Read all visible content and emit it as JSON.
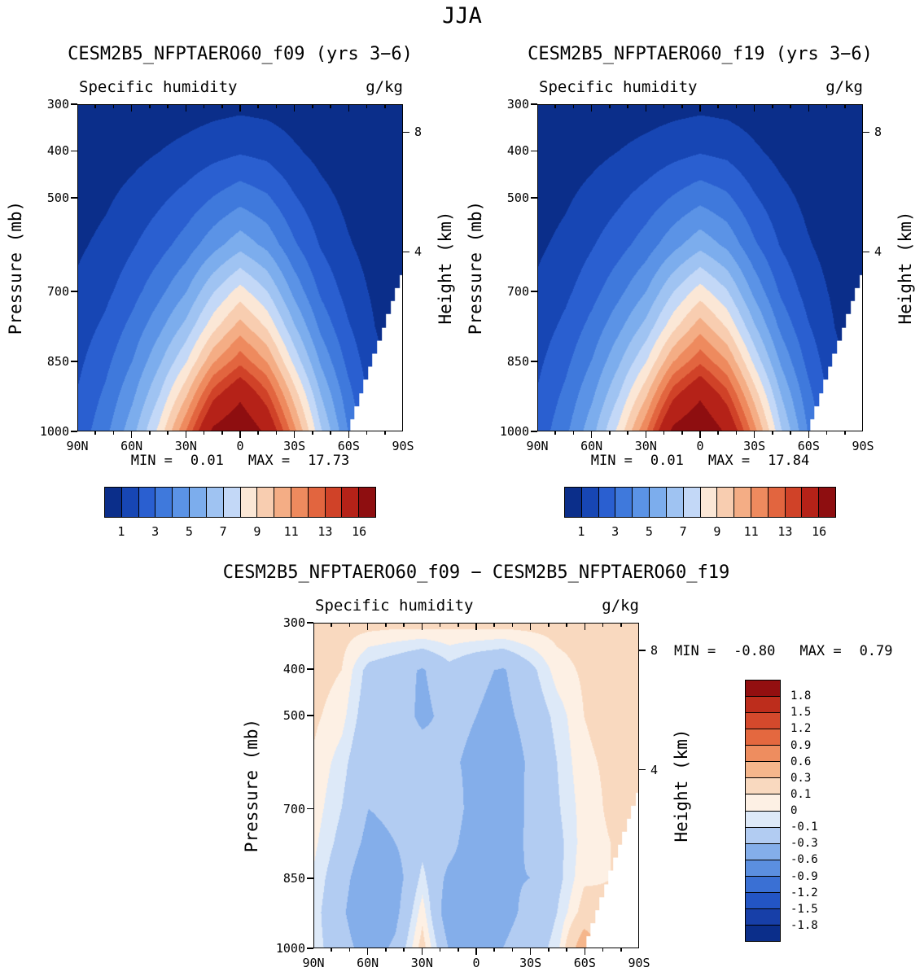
{
  "figure_title": "JJA",
  "axes": {
    "pressure_tick_values": [
      300,
      400,
      500,
      700,
      850,
      1000
    ],
    "pressure_tick_labels": [
      "300",
      "400",
      "500",
      "700",
      "850",
      "1000"
    ],
    "pressure_range": [
      300,
      1000
    ],
    "lat_tick_values": [
      90,
      60,
      30,
      0,
      -30,
      -60,
      -90
    ],
    "lat_tick_labels": [
      "90N",
      "60N",
      "30N",
      "0",
      "30S",
      "60S",
      "90S"
    ],
    "height_tick_pressures": [
      360,
      616
    ],
    "height_tick_labels": [
      "8",
      "4"
    ]
  },
  "terrain": {
    "lats": [
      90,
      75,
      60,
      45,
      30,
      15,
      0,
      -15,
      -30,
      -45,
      -60,
      -75,
      -90
    ],
    "surface_pressure_mb": [
      1013,
      1013,
      1013,
      1013,
      1013,
      1013,
      1013,
      1013,
      1013,
      1013,
      1005,
      835,
      665
    ]
  },
  "colorscale_q": {
    "levels": [
      1,
      2,
      3,
      4,
      5,
      6,
      7,
      8,
      9,
      10,
      11,
      12,
      13,
      14,
      16
    ],
    "colors": [
      "#0b2e8a",
      "#1746b4",
      "#2a5fd0",
      "#3f79dc",
      "#5b93e6",
      "#7caded",
      "#9fc3f2",
      "#c3d8f7",
      "#fbe7d6",
      "#f8cdb0",
      "#f4ad85",
      "#ee8a5e",
      "#e2653f",
      "#d04228",
      "#b52218",
      "#8e0e10"
    ],
    "tick_labels": [
      "1",
      "3",
      "5",
      "7",
      "9",
      "11",
      "13",
      "16"
    ],
    "tick_boundary_indices": [
      0,
      2,
      4,
      6,
      8,
      10,
      12,
      14
    ]
  },
  "colorscale_diff": {
    "levels": [
      -1.8,
      -1.5,
      -1.2,
      -0.9,
      -0.6,
      -0.3,
      -0.1,
      0,
      0.1,
      0.3,
      0.6,
      0.9,
      1.2,
      1.5,
      1.8
    ],
    "colors": [
      "#0b2e8a",
      "#173fa8",
      "#2355c4",
      "#3a70d4",
      "#5b8fe0",
      "#84aeea",
      "#b2ccf2",
      "#dde9f8",
      "#fdf0e4",
      "#f9d9bf",
      "#f5b68c",
      "#ee8d5f",
      "#e4683f",
      "#d4492c",
      "#bd2d1c",
      "#930f10"
    ],
    "tick_labels": [
      "1.8",
      "1.5",
      "1.2",
      "0.9",
      "0.6",
      "0.3",
      "0.1",
      "0",
      "-0.1",
      "-0.3",
      "-0.6",
      "-0.9",
      "-1.2",
      "-1.5",
      "-1.8"
    ]
  },
  "chart_data": [
    {
      "type": "heatmap",
      "title": "CESM2B5_NFPTAERO60_f09 (yrs 3−6)",
      "field_label": "Specific humidity",
      "units": "g/kg",
      "ylabel": "Pressure (mb)",
      "ylabel_right": "Height (km)",
      "x": "latitude",
      "y": "pressure_mb",
      "stats": {
        "min_label": "MIN =",
        "min": "0.01",
        "max_label": "MAX =",
        "max": "17.73"
      },
      "lats": [
        90,
        75,
        60,
        45,
        30,
        15,
        0,
        -15,
        -30,
        -45,
        -60,
        -75,
        -90
      ],
      "pressure_levels": [
        300,
        400,
        500,
        600,
        700,
        775,
        850,
        925,
        1000
      ],
      "values": [
        [
          0.12,
          0.18,
          0.28,
          0.4,
          0.52,
          0.66,
          0.76,
          0.68,
          0.5,
          0.32,
          0.2,
          0.12,
          0.08
        ],
        [
          0.3,
          0.45,
          0.7,
          1.0,
          1.3,
          1.65,
          1.9,
          1.7,
          1.15,
          0.7,
          0.4,
          0.22,
          0.12
        ],
        [
          0.55,
          0.85,
          1.3,
          1.8,
          2.35,
          3.05,
          3.65,
          3.15,
          2.1,
          1.3,
          0.75,
          0.4,
          0.2
        ],
        [
          0.85,
          1.25,
          1.9,
          2.6,
          3.45,
          4.6,
          5.6,
          4.7,
          3.15,
          1.9,
          1.1,
          0.55,
          0.28
        ],
        [
          1.2,
          1.75,
          2.6,
          3.7,
          4.95,
          6.9,
          8.4,
          7.0,
          4.7,
          2.8,
          1.6,
          0.8,
          0.38
        ],
        [
          1.5,
          2.2,
          3.3,
          4.7,
          6.3,
          8.6,
          10.4,
          8.8,
          6.1,
          3.7,
          2.1,
          1.0,
          0.45
        ],
        [
          1.8,
          2.7,
          4.0,
          5.8,
          7.9,
          10.8,
          12.6,
          10.9,
          7.7,
          4.8,
          2.7,
          1.2,
          0.5
        ],
        [
          2.1,
          3.2,
          4.8,
          7.0,
          9.9,
          13.6,
          15.6,
          13.3,
          9.6,
          6.0,
          3.4,
          1.4,
          0.55
        ],
        [
          2.4,
          3.7,
          5.6,
          8.3,
          12.0,
          16.3,
          17.7,
          15.5,
          11.3,
          7.1,
          4.0,
          1.6,
          0.6
        ]
      ]
    },
    {
      "type": "heatmap",
      "title": "CESM2B5_NFPTAERO60_f19 (yrs 3−6)",
      "field_label": "Specific humidity",
      "units": "g/kg",
      "ylabel": "Pressure (mb)",
      "ylabel_right": "Height (km)",
      "x": "latitude",
      "y": "pressure_mb",
      "stats": {
        "min_label": "MIN =",
        "min": "0.01",
        "max_label": "MAX =",
        "max": "17.84"
      },
      "lats": [
        90,
        75,
        60,
        45,
        30,
        15,
        0,
        -15,
        -30,
        -45,
        -60,
        -75,
        -90
      ],
      "pressure_levels": [
        300,
        400,
        500,
        600,
        700,
        775,
        850,
        925,
        1000
      ],
      "values": [
        [
          0.11,
          0.17,
          0.27,
          0.39,
          0.51,
          0.65,
          0.75,
          0.67,
          0.49,
          0.31,
          0.19,
          0.11,
          0.07
        ],
        [
          0.28,
          0.44,
          0.72,
          1.02,
          1.33,
          1.67,
          1.93,
          1.73,
          1.17,
          0.69,
          0.39,
          0.21,
          0.11
        ],
        [
          0.53,
          0.86,
          1.33,
          1.83,
          2.4,
          3.1,
          3.7,
          3.2,
          2.13,
          1.31,
          0.74,
          0.38,
          0.19
        ],
        [
          0.84,
          1.27,
          1.93,
          2.63,
          3.48,
          4.64,
          5.65,
          4.75,
          3.18,
          1.91,
          1.09,
          0.54,
          0.27
        ],
        [
          1.19,
          1.77,
          2.64,
          3.74,
          4.98,
          6.94,
          8.45,
          7.06,
          4.73,
          2.81,
          1.59,
          0.79,
          0.37
        ],
        [
          1.49,
          2.23,
          3.34,
          4.74,
          6.32,
          8.64,
          10.5,
          8.85,
          6.13,
          3.71,
          2.09,
          0.99,
          0.44
        ],
        [
          1.81,
          2.73,
          4.05,
          5.85,
          7.92,
          10.9,
          12.7,
          11.0,
          7.74,
          4.81,
          2.68,
          1.19,
          0.49
        ],
        [
          2.12,
          3.24,
          4.85,
          7.04,
          9.88,
          13.7,
          15.7,
          13.4,
          9.64,
          6.01,
          3.37,
          1.39,
          0.54
        ],
        [
          2.42,
          3.74,
          5.65,
          8.35,
          11.9,
          16.4,
          17.8,
          15.6,
          11.4,
          7.12,
          3.96,
          1.58,
          0.59
        ]
      ]
    },
    {
      "type": "heatmap",
      "title": "CESM2B5_NFPTAERO60_f09 − CESM2B5_NFPTAERO60_f19",
      "field_label": "Specific humidity",
      "units": "g/kg",
      "ylabel": "Pressure (mb)",
      "ylabel_right": "Height (km)",
      "x": "latitude",
      "y": "pressure_mb",
      "stats": {
        "min_label": "MIN =",
        "min": "-0.80",
        "max_label": "MAX =",
        "max": "0.79"
      },
      "lats": [
        90,
        75,
        60,
        45,
        30,
        15,
        0,
        -15,
        -30,
        -45,
        -60,
        -75,
        -90
      ],
      "pressure_levels": [
        300,
        400,
        500,
        600,
        700,
        775,
        850,
        925,
        1000
      ],
      "values": [
        [
          0.15,
          0.15,
          0.15,
          0.14,
          0.15,
          0.13,
          0.15,
          0.15,
          0.15,
          0.15,
          0.15,
          0.15,
          0.15
        ],
        [
          0.15,
          0.1,
          -0.15,
          -0.22,
          -0.32,
          -0.15,
          -0.26,
          -0.32,
          -0.15,
          0.05,
          0.12,
          0.15,
          0.15
        ],
        [
          0.12,
          0.04,
          -0.2,
          -0.15,
          -0.36,
          -0.22,
          -0.3,
          -0.36,
          -0.22,
          -0.06,
          0.1,
          0.14,
          0.15
        ],
        [
          0.08,
          -0.05,
          -0.26,
          -0.2,
          -0.15,
          -0.26,
          -0.36,
          -0.46,
          -0.26,
          -0.1,
          0.08,
          0.12,
          0.15
        ],
        [
          0.05,
          -0.1,
          -0.3,
          -0.26,
          -0.2,
          -0.16,
          -0.42,
          -0.56,
          -0.22,
          -0.12,
          0.05,
          0.12,
          0.14
        ],
        [
          0.02,
          -0.15,
          -0.36,
          -0.3,
          -0.15,
          -0.22,
          -0.46,
          -0.42,
          -0.26,
          -0.15,
          0.05,
          0.1,
          0.12
        ],
        [
          -0.02,
          -0.22,
          -0.46,
          -0.4,
          -0.06,
          -0.36,
          -0.42,
          -0.32,
          -0.3,
          -0.15,
          0.08,
          0.1,
          0.12
        ],
        [
          -0.05,
          -0.26,
          -0.52,
          -0.36,
          0.06,
          -0.46,
          -0.52,
          -0.36,
          -0.25,
          -0.1,
          0.16,
          0.12,
          0.1
        ],
        [
          -0.05,
          -0.2,
          -0.42,
          -0.26,
          0.16,
          -0.32,
          -0.56,
          -0.3,
          -0.2,
          -0.05,
          0.46,
          0.15,
          0.1
        ]
      ]
    }
  ]
}
